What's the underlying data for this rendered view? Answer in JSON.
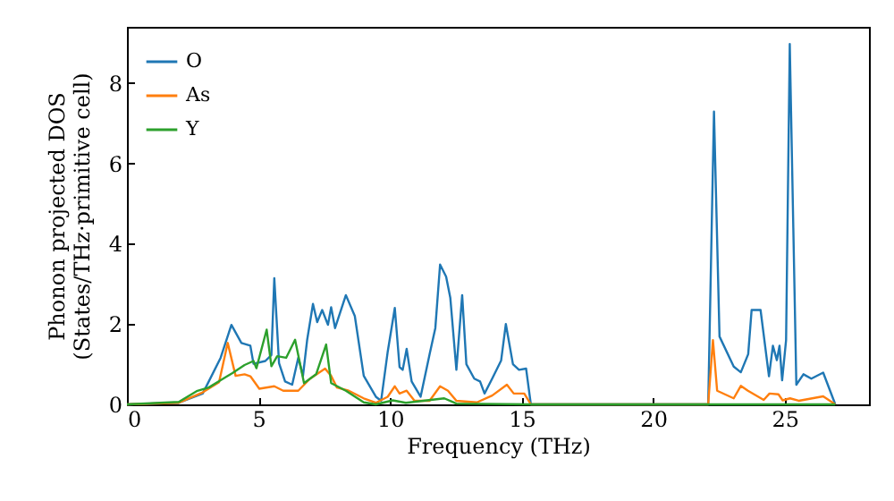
{
  "chart_data": {
    "type": "line",
    "xlabel": "Frequency (THz)",
    "ylabel": "Phonon projected DOS\n(States/THz·primitive cell)",
    "xlim": [
      0,
      28.2
    ],
    "ylim": [
      0,
      9.4
    ],
    "xticks": [
      0,
      5,
      10,
      15,
      20,
      25
    ],
    "yticks": [
      0,
      2,
      4,
      6,
      8
    ],
    "grid": false,
    "legend": "top left",
    "line_style": "solid",
    "marker": "none",
    "series": [
      {
        "name": "O",
        "color": "#1f77b4",
        "x": [
          0,
          1.97,
          2.88,
          3.56,
          3.97,
          4.35,
          4.69,
          4.81,
          5.26,
          5.49,
          5.6,
          5.78,
          6.01,
          6.28,
          6.51,
          6.69,
          6.85,
          7.07,
          7.23,
          7.42,
          7.64,
          7.76,
          7.91,
          8.32,
          8.66,
          9.0,
          9.46,
          9.66,
          9.91,
          10.18,
          10.36,
          10.48,
          10.63,
          10.82,
          11.16,
          11.5,
          11.72,
          11.9,
          12.13,
          12.29,
          12.52,
          12.74,
          12.9,
          13.2,
          13.42,
          13.59,
          13.88,
          14.22,
          14.4,
          14.67,
          14.9,
          15.17,
          15.35,
          22.09,
          22.31,
          22.52,
          23.06,
          23.33,
          23.61,
          23.74,
          24.08,
          24.4,
          24.55,
          24.7,
          24.8,
          24.9,
          25.05,
          25.19,
          25.44,
          25.71,
          26.01,
          26.46,
          26.92
        ],
        "values": [
          0,
          0.04,
          0.27,
          1.16,
          1.98,
          1.53,
          1.46,
          1.01,
          1.08,
          1.23,
          3.14,
          1.03,
          0.57,
          0.49,
          1.16,
          0.71,
          1.61,
          2.5,
          2.05,
          2.35,
          1.98,
          2.42,
          1.9,
          2.72,
          2.2,
          0.71,
          0.19,
          0.09,
          1.31,
          2.4,
          0.93,
          0.86,
          1.38,
          0.57,
          0.19,
          1.24,
          1.9,
          3.48,
          3.18,
          2.65,
          0.86,
          2.72,
          1.0,
          0.64,
          0.57,
          0.27,
          0.64,
          1.09,
          2.0,
          1.0,
          0.86,
          0.89,
          0,
          0,
          7.29,
          1.69,
          0.94,
          0.8,
          1.25,
          2.35,
          2.35,
          0.7,
          1.46,
          1.1,
          1.46,
          0.6,
          1.6,
          8.97,
          0.49,
          0.75,
          0.64,
          0.79,
          0
        ]
      },
      {
        "name": "As",
        "color": "#ff7f0e",
        "x": [
          0,
          1.97,
          2.88,
          3.5,
          3.83,
          4.13,
          4.47,
          4.69,
          5.03,
          5.6,
          5.94,
          6.51,
          6.96,
          7.53,
          7.76,
          7.98,
          8.43,
          9.0,
          9.46,
          9.91,
          10.18,
          10.36,
          10.63,
          10.93,
          11.5,
          11.9,
          12.2,
          12.52,
          13.3,
          13.88,
          14.44,
          14.7,
          15.1,
          15.35,
          22.09,
          22.27,
          22.43,
          23.06,
          23.33,
          23.6,
          24.2,
          24.42,
          24.76,
          24.92,
          25.2,
          25.53,
          26.46,
          26.92
        ],
        "values": [
          0,
          0.04,
          0.3,
          0.55,
          1.53,
          0.71,
          0.75,
          0.7,
          0.39,
          0.45,
          0.34,
          0.34,
          0.64,
          0.89,
          0.71,
          0.42,
          0.34,
          0.15,
          0.04,
          0.19,
          0.45,
          0.27,
          0.34,
          0.09,
          0.09,
          0.45,
          0.34,
          0.09,
          0.05,
          0.22,
          0.49,
          0.27,
          0.27,
          0,
          0,
          1.6,
          0.34,
          0.15,
          0.46,
          0.34,
          0.11,
          0.27,
          0.25,
          0.1,
          0.15,
          0.09,
          0.2,
          0
        ]
      },
      {
        "name": "Y",
        "color": "#2ca02c",
        "x": [
          0,
          1.97,
          2.65,
          3.11,
          3.56,
          4.01,
          4.47,
          4.81,
          4.92,
          5.31,
          5.49,
          5.71,
          6.05,
          6.39,
          6.73,
          7.19,
          7.57,
          7.76,
          8.32,
          9.0,
          9.46,
          10.1,
          10.6,
          12.06,
          12.52,
          15.35,
          22.09,
          26.92
        ],
        "values": [
          0,
          0.06,
          0.33,
          0.42,
          0.6,
          0.78,
          0.98,
          1.08,
          0.9,
          1.86,
          0.95,
          1.2,
          1.16,
          1.61,
          0.53,
          0.75,
          1.49,
          0.53,
          0.34,
          0.05,
          0,
          0.1,
          0.04,
          0.15,
          0.02,
          0,
          0,
          0
        ]
      }
    ]
  }
}
